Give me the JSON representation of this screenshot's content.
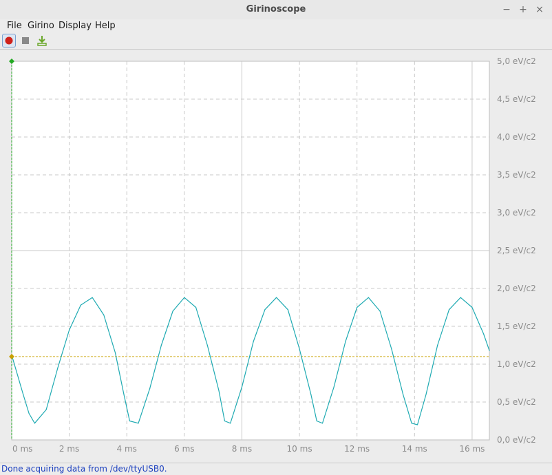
{
  "window": {
    "title": "Girinoscope",
    "controls": [
      "−",
      "+",
      "×"
    ]
  },
  "menu": {
    "items": [
      "File",
      "Girino",
      "Display",
      "Help"
    ]
  },
  "toolbar": {
    "buttons": [
      {
        "name": "record-icon",
        "color": "#d0211b"
      },
      {
        "name": "stop-icon",
        "color": "#8a8a8a"
      },
      {
        "name": "export-icon",
        "color": "#6aa72a"
      }
    ]
  },
  "chart_data": {
    "type": "line",
    "x_unit": "ms",
    "y_unit": "eV/c2",
    "xlim": [
      0,
      16.6
    ],
    "ylim": [
      0,
      5
    ],
    "x_ticks": [
      "0 ms",
      "2 ms",
      "4 ms",
      "6 ms",
      "8 ms",
      "10 ms",
      "12 ms",
      "14 ms",
      "16 ms"
    ],
    "y_ticks": [
      "0,0 eV/c2",
      "0,5 eV/c2",
      "1,0 eV/c2",
      "1,5 eV/c2",
      "2,0 eV/c2",
      "2,5 eV/c2",
      "3,0 eV/c2",
      "3,5 eV/c2",
      "4,0 eV/c2",
      "4,5 eV/c2",
      "5,0 eV/c2"
    ],
    "series": [
      {
        "color": "#1eaab2",
        "x": [
          0,
          0.4,
          0.6,
          0.8,
          1.2,
          1.6,
          2.0,
          2.4,
          2.8,
          3.2,
          3.6,
          3.9,
          4.1,
          4.4,
          4.8,
          5.2,
          5.6,
          6.0,
          6.4,
          6.8,
          7.2,
          7.4,
          7.6,
          8.0,
          8.4,
          8.8,
          9.2,
          9.6,
          10.0,
          10.4,
          10.6,
          10.8,
          11.2,
          11.6,
          12.0,
          12.4,
          12.8,
          13.2,
          13.6,
          13.9,
          14.1,
          14.4,
          14.8,
          15.2,
          15.6,
          16.0,
          16.4,
          16.6
        ],
        "y": [
          1.12,
          0.6,
          0.35,
          0.22,
          0.4,
          0.95,
          1.45,
          1.78,
          1.88,
          1.65,
          1.15,
          0.6,
          0.25,
          0.22,
          0.68,
          1.25,
          1.7,
          1.88,
          1.75,
          1.25,
          0.65,
          0.25,
          0.22,
          0.7,
          1.3,
          1.72,
          1.88,
          1.72,
          1.2,
          0.6,
          0.25,
          0.22,
          0.7,
          1.3,
          1.75,
          1.88,
          1.7,
          1.2,
          0.6,
          0.22,
          0.2,
          0.6,
          1.25,
          1.72,
          1.88,
          1.75,
          1.4,
          1.18
        ]
      }
    ],
    "trigger_level": 1.1,
    "trigger_color": "#c8a000",
    "cursor_color": "#22aa22",
    "grid": true
  },
  "status": {
    "text": "Done acquiring data from /dev/ttyUSB0."
  }
}
